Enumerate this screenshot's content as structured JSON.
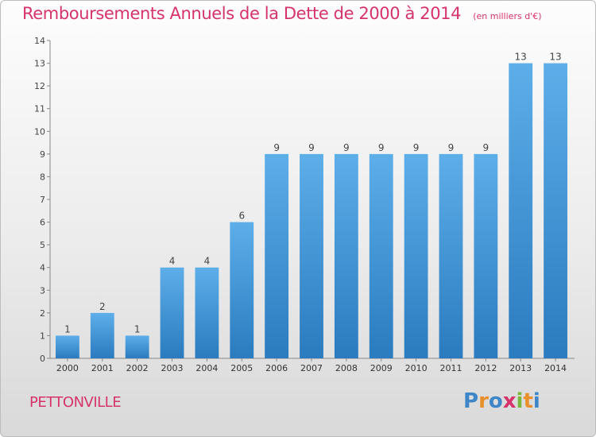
{
  "chart_data": {
    "type": "bar",
    "title": "Remboursements Annuels de la Dette de 2000 à 2014",
    "subtitle": "(en milliers d'€)",
    "categories": [
      "2000",
      "2001",
      "2002",
      "2003",
      "2004",
      "2005",
      "2006",
      "2007",
      "2008",
      "2009",
      "2010",
      "2011",
      "2012",
      "2013",
      "2014"
    ],
    "values": [
      1,
      2,
      1,
      4,
      4,
      6,
      9,
      9,
      9,
      9,
      9,
      9,
      9,
      13,
      13
    ],
    "ylim": [
      0,
      14
    ],
    "yticks": [
      0,
      1,
      2,
      3,
      4,
      5,
      6,
      7,
      8,
      9,
      10,
      11,
      12,
      13,
      14
    ],
    "xlabel": "",
    "ylabel": "",
    "grid": false,
    "bar_color_top": "#5daee9",
    "bar_color_bottom": "#2a7bbf"
  },
  "footer": {
    "commune": "PETTONVILLE",
    "logo_letters": [
      {
        "char": "P",
        "color": "#3f86c9"
      },
      {
        "char": "r",
        "color": "#e8902c"
      },
      {
        "char": "o",
        "color": "#3f86c9"
      },
      {
        "char": "x",
        "color": "#d6336c"
      },
      {
        "char": "i",
        "color": "#79b83b"
      },
      {
        "char": "t",
        "color": "#e8902c"
      },
      {
        "char": "i",
        "color": "#3f86c9"
      }
    ]
  }
}
